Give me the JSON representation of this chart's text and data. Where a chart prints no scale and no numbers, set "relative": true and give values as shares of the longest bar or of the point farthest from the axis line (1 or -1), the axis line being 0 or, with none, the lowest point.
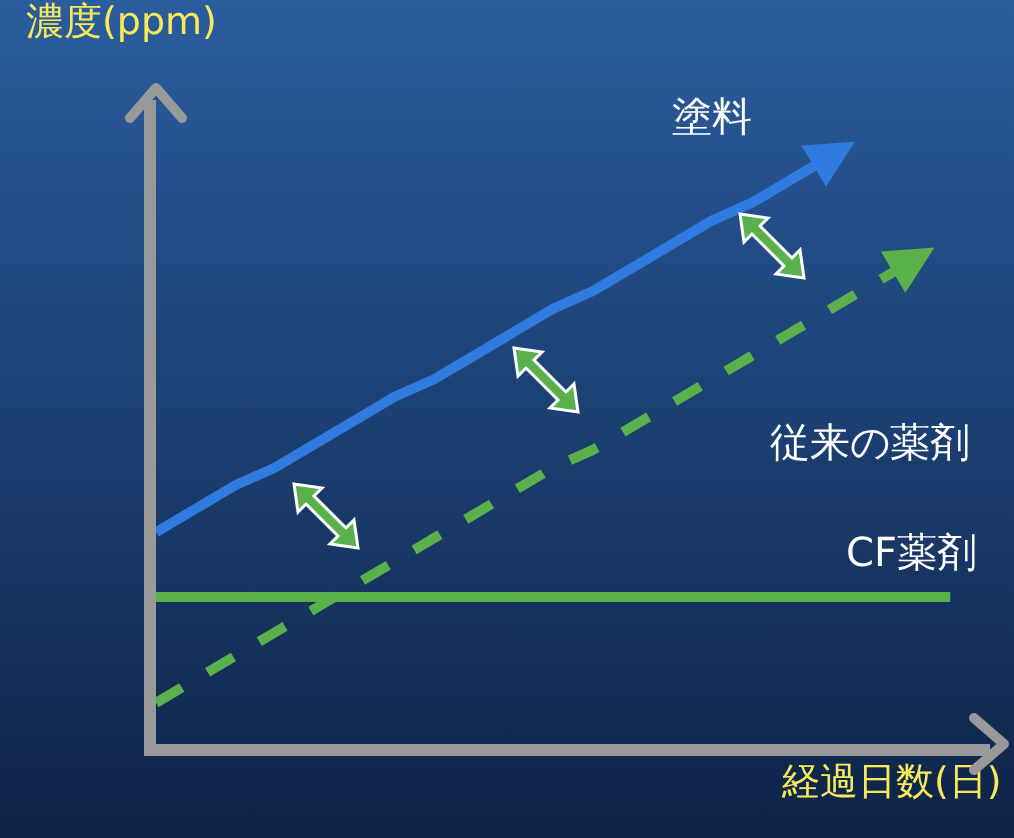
{
  "chart_data": {
    "type": "line",
    "relative": true,
    "ylabel": "濃度(ppm)",
    "xlabel": "経過日数(日)",
    "legend": false,
    "grid": false,
    "categories": [
      null,
      null,
      null,
      null,
      null,
      null,
      null,
      null,
      null,
      null,
      null,
      null,
      null,
      null,
      null,
      null,
      null,
      null,
      null,
      null,
      null
    ],
    "series": [
      {
        "name": "塗料",
        "color": "#2f7be0",
        "line_style": "solid",
        "values": [
          0.36,
          0.4,
          0.44,
          0.47,
          0.51,
          0.55,
          0.59,
          0.62,
          0.66,
          0.7,
          0.74,
          0.77,
          0.81,
          0.85,
          0.89,
          0.92,
          0.96,
          1.0,
          null,
          null,
          null
        ]
      },
      {
        "name": "従来の薬剤",
        "color": "#5ab04a",
        "line_style": "dashed",
        "values": [
          0.07,
          0.11,
          0.15,
          0.19,
          0.23,
          0.27,
          0.31,
          0.35,
          0.39,
          0.43,
          0.47,
          0.5,
          0.54,
          0.58,
          0.62,
          0.66,
          0.7,
          0.74,
          0.78,
          0.82,
          null
        ]
      },
      {
        "name": "CF薬剤",
        "color": "#5ab04a",
        "line_style": "solid",
        "values": [
          0.25,
          0.25,
          0.25,
          0.25,
          0.25,
          0.25,
          0.25,
          0.25,
          0.25,
          0.25,
          0.25,
          0.25,
          0.25,
          0.25,
          0.25,
          0.25,
          0.25,
          0.25,
          0.25,
          0.25,
          0.25
        ]
      }
    ]
  }
}
